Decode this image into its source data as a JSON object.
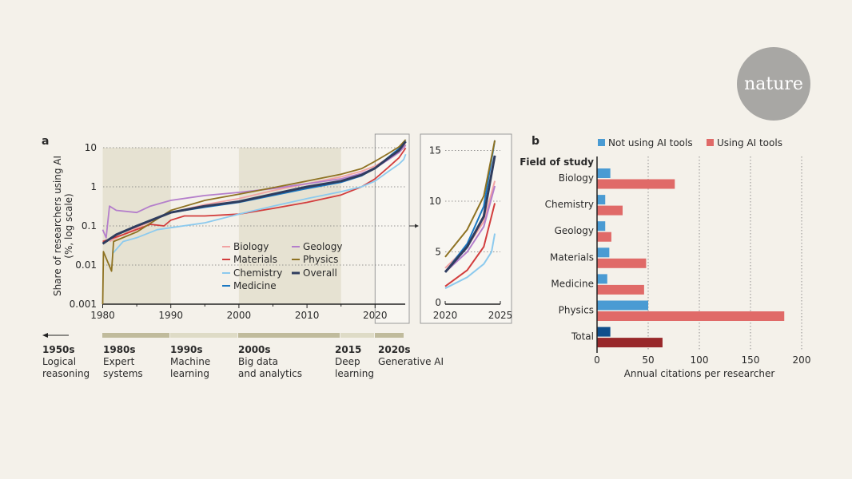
{
  "logo": {
    "text": "nature",
    "color": "#a8a7a4"
  },
  "chart_data": [
    {
      "panel": "a",
      "type": "line",
      "ylabel": "Share of researchers using AI",
      "ylabel2": "(%, log scale)",
      "yscale": "log",
      "xlim": [
        1980,
        2025
      ],
      "ylim": [
        0.001,
        10
      ],
      "xticks": [
        1980,
        1990,
        2000,
        2010,
        2020
      ],
      "yticks": [
        0.001,
        0.01,
        0.1,
        1,
        10
      ],
      "ytick_labels": [
        "0.001",
        "0.01",
        "0.1",
        "1",
        "10"
      ],
      "grid": "horizontal dotted",
      "shaded_periods": [
        [
          1980,
          1990
        ],
        [
          2000,
          2015
        ]
      ],
      "legend": "bottom-right",
      "series": [
        {
          "name": "Biology",
          "color": "#f2a3a3",
          "x": [
            1981,
            1985,
            1990,
            1995,
            2000,
            2005,
            2010,
            2015,
            2018,
            2020,
            2022,
            2023.5,
            2024.5
          ],
          "y": [
            0.04,
            0.09,
            0.22,
            0.35,
            0.5,
            0.8,
            1.2,
            1.8,
            2.5,
            3.4,
            5.5,
            8,
            12
          ]
        },
        {
          "name": "Materials",
          "color": "#d23c3c",
          "x": [
            1980,
            1983,
            1987,
            1989,
            1990,
            1992,
            1995,
            2000,
            2005,
            2010,
            2015,
            2018,
            2020,
            2022,
            2023.5,
            2024.5
          ],
          "y": [
            0.04,
            0.06,
            0.11,
            0.1,
            0.14,
            0.18,
            0.18,
            0.2,
            0.28,
            0.4,
            0.62,
            1.0,
            1.6,
            3.2,
            5.5,
            9.8
          ]
        },
        {
          "name": "Chemistry",
          "color": "#8ccaee",
          "x": [
            1981.5,
            1983,
            1985,
            1988,
            1990,
            1995,
            2000,
            2005,
            2010,
            2015,
            2018,
            2020,
            2022,
            2023.5,
            2024.2,
            2024.5
          ],
          "y": [
            0.02,
            0.04,
            0.05,
            0.08,
            0.09,
            0.12,
            0.2,
            0.32,
            0.5,
            0.75,
            1.0,
            1.4,
            2.5,
            3.8,
            5,
            6.8
          ]
        },
        {
          "name": "Medicine",
          "color": "#1a78c2",
          "x": [
            1990,
            1995,
            2000,
            2005,
            2010,
            2015,
            2018,
            2020,
            2022,
            2023.5,
            2024.5
          ],
          "y": [
            0.22,
            0.3,
            0.4,
            0.6,
            0.9,
            1.3,
            1.9,
            3.0,
            5.8,
            9.5,
            16
          ]
        },
        {
          "name": "Geology",
          "color": "#b47ecb",
          "x": [
            1980,
            1980.5,
            1981,
            1982,
            1985,
            1987,
            1990,
            1995,
            2000,
            2005,
            2010,
            2015,
            2018,
            2020,
            2022,
            2023.5,
            2024.5
          ],
          "y": [
            0.08,
            0.05,
            0.32,
            0.25,
            0.22,
            0.32,
            0.45,
            0.6,
            0.72,
            0.9,
            1.2,
            1.6,
            2.2,
            3.0,
            5,
            7.5,
            11.5
          ]
        },
        {
          "name": "Physics",
          "color": "#8e7222",
          "x": [
            1980,
            1980.1,
            1981.3,
            1981.6,
            1985,
            1990,
            1995,
            2000,
            2005,
            2010,
            2015,
            2018,
            2020,
            2022,
            2023.5,
            2024.5
          ],
          "y": [
            0.001,
            0.022,
            0.007,
            0.04,
            0.07,
            0.25,
            0.45,
            0.65,
            0.95,
            1.4,
            2.1,
            2.9,
            4.5,
            7.2,
            10.5,
            16
          ]
        },
        {
          "name": "Overall",
          "color": "#2f3d5f",
          "x": [
            1980,
            1982,
            1985,
            1990,
            1995,
            2000,
            2005,
            2010,
            2015,
            2018,
            2020,
            2022,
            2023.5,
            2024.5
          ],
          "y": [
            0.035,
            0.06,
            0.1,
            0.22,
            0.32,
            0.42,
            0.65,
            1.0,
            1.4,
            2.0,
            3.0,
            5.5,
            8.5,
            14.5
          ]
        }
      ]
    },
    {
      "panel": "a-inset",
      "type": "line",
      "yscale": "linear",
      "xlim": [
        2020,
        2025
      ],
      "ylim": [
        0,
        16
      ],
      "xticks": [
        2020,
        2025
      ],
      "yticks": [
        0,
        5,
        10,
        15
      ],
      "grid": "horizontal dotted"
    },
    {
      "panel": "b",
      "type": "bar",
      "orientation": "horizontal",
      "ytitle": "Field of study",
      "xlabel": "Annual citations per researcher",
      "xlim": [
        0,
        200
      ],
      "xticks": [
        0,
        50,
        100,
        150,
        200
      ],
      "grid": "vertical dotted",
      "legend": "top",
      "categories": [
        "Biology",
        "Chemistry",
        "Geology",
        "Materials",
        "Medicine",
        "Physics",
        "Total"
      ],
      "series": [
        {
          "name": "Not using AI tools",
          "color": "#4a9bd3",
          "total_color": "#0f4f8c",
          "values": [
            13,
            8,
            8,
            12,
            10,
            50,
            13
          ]
        },
        {
          "name": "Using AI tools",
          "color": "#e06a68",
          "total_color": "#98282a",
          "values": [
            76,
            25,
            14,
            48,
            46,
            183,
            64
          ]
        }
      ]
    }
  ],
  "timeline": [
    {
      "year": "1950s",
      "label1": "Logical",
      "label2": "reasoning"
    },
    {
      "year": "1980s",
      "label1": "Expert",
      "label2": "systems"
    },
    {
      "year": "1990s",
      "label1": "Machine",
      "label2": "learning"
    },
    {
      "year": "2000s",
      "label1": "Big data",
      "label2": "and analytics"
    },
    {
      "year": "2015",
      "label1": "Deep",
      "label2": "learning"
    },
    {
      "year": "2020s",
      "label1": "Generative AI",
      "label2": ""
    }
  ]
}
